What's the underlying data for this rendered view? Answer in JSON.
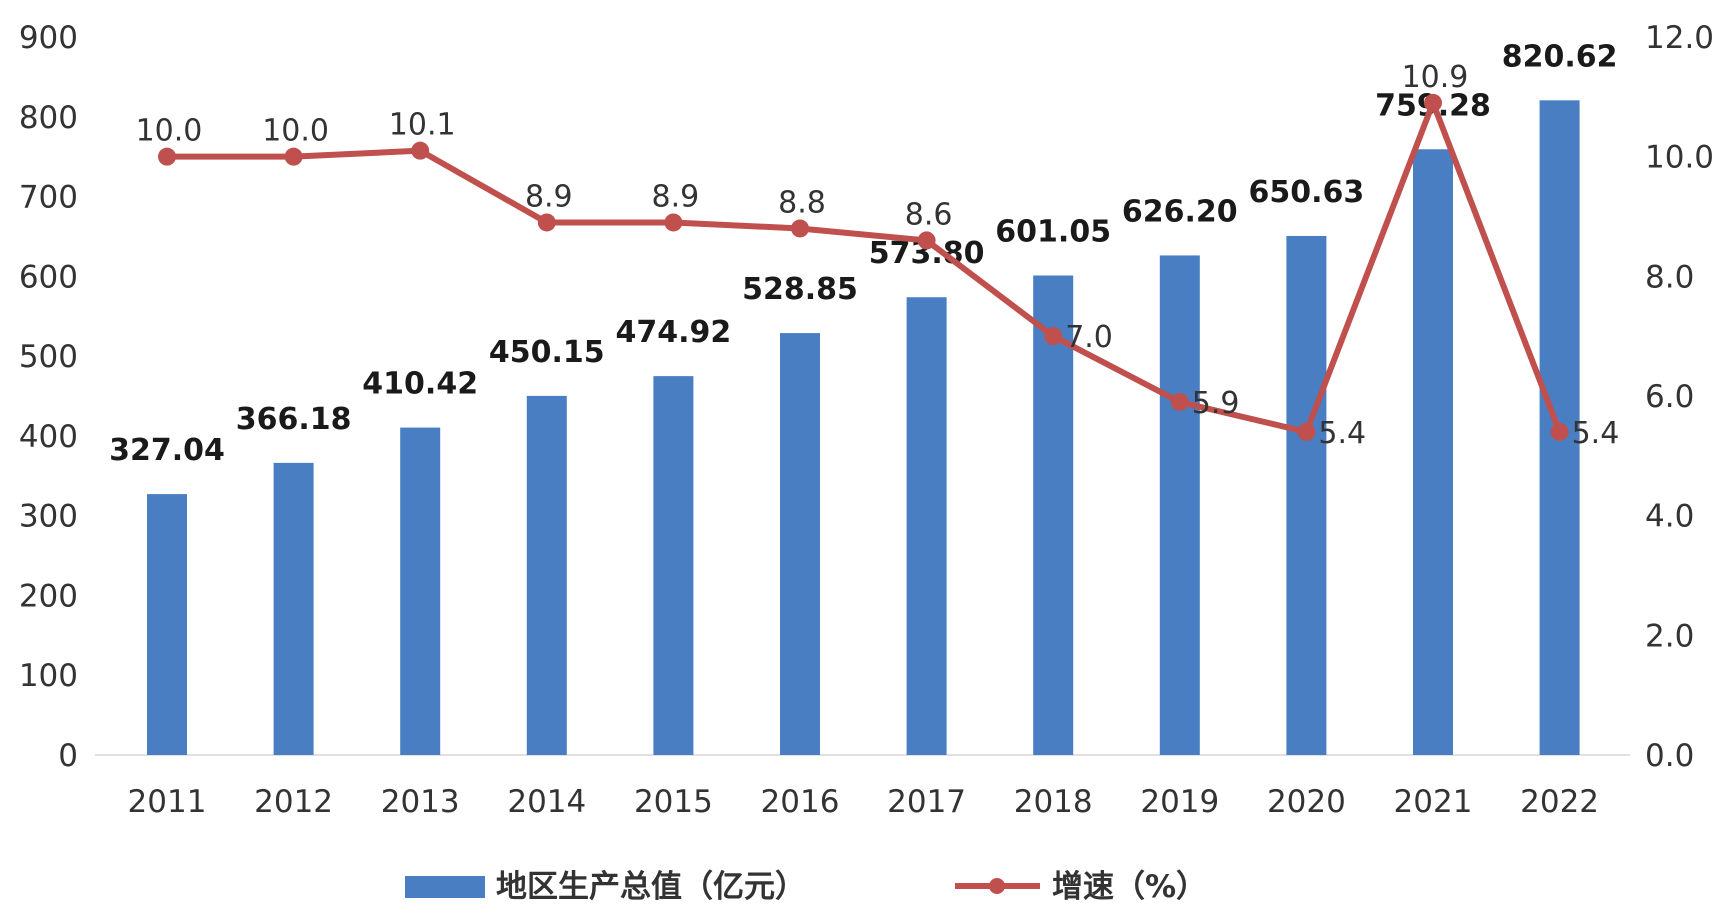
{
  "chart_data": {
    "type": "bar",
    "categories": [
      "2011",
      "2012",
      "2013",
      "2014",
      "2015",
      "2016",
      "2017",
      "2018",
      "2019",
      "2020",
      "2021",
      "2022"
    ],
    "series": [
      {
        "name": "地区生产总值（亿元）",
        "type": "bar",
        "axis": "left",
        "values": [
          327.04,
          366.18,
          410.42,
          450.15,
          474.92,
          528.85,
          573.8,
          601.05,
          626.2,
          650.63,
          759.28,
          820.62
        ],
        "labels": [
          "327.04",
          "366.18",
          "410.42",
          "450.15",
          "474.92",
          "528.85",
          "573.80",
          "601.05",
          "626.20",
          "650.63",
          "759.28",
          "820.62"
        ],
        "color": "#4a7ec2"
      },
      {
        "name": "增速（%）",
        "type": "line",
        "axis": "right",
        "values": [
          10.0,
          10.0,
          10.1,
          8.9,
          8.9,
          8.8,
          8.6,
          7.0,
          5.9,
          5.4,
          10.9,
          5.4
        ],
        "labels": [
          "10.0",
          "10.0",
          "10.1",
          "8.9",
          "8.9",
          "8.8",
          "8.6",
          "7.0",
          "5.9",
          "5.4",
          "10.9",
          "5.4"
        ],
        "color": "#c0504d"
      }
    ],
    "y_left": {
      "min": 0,
      "max": 900,
      "ticks": [
        "0",
        "100",
        "200",
        "300",
        "400",
        "500",
        "600",
        "700",
        "800",
        "900"
      ]
    },
    "y_right": {
      "min": 0,
      "max": 12,
      "ticks": [
        "0.0",
        "2.0",
        "4.0",
        "6.0",
        "8.0",
        "10.0",
        "12.0"
      ]
    },
    "grid": false,
    "legend_position": "bottom"
  }
}
